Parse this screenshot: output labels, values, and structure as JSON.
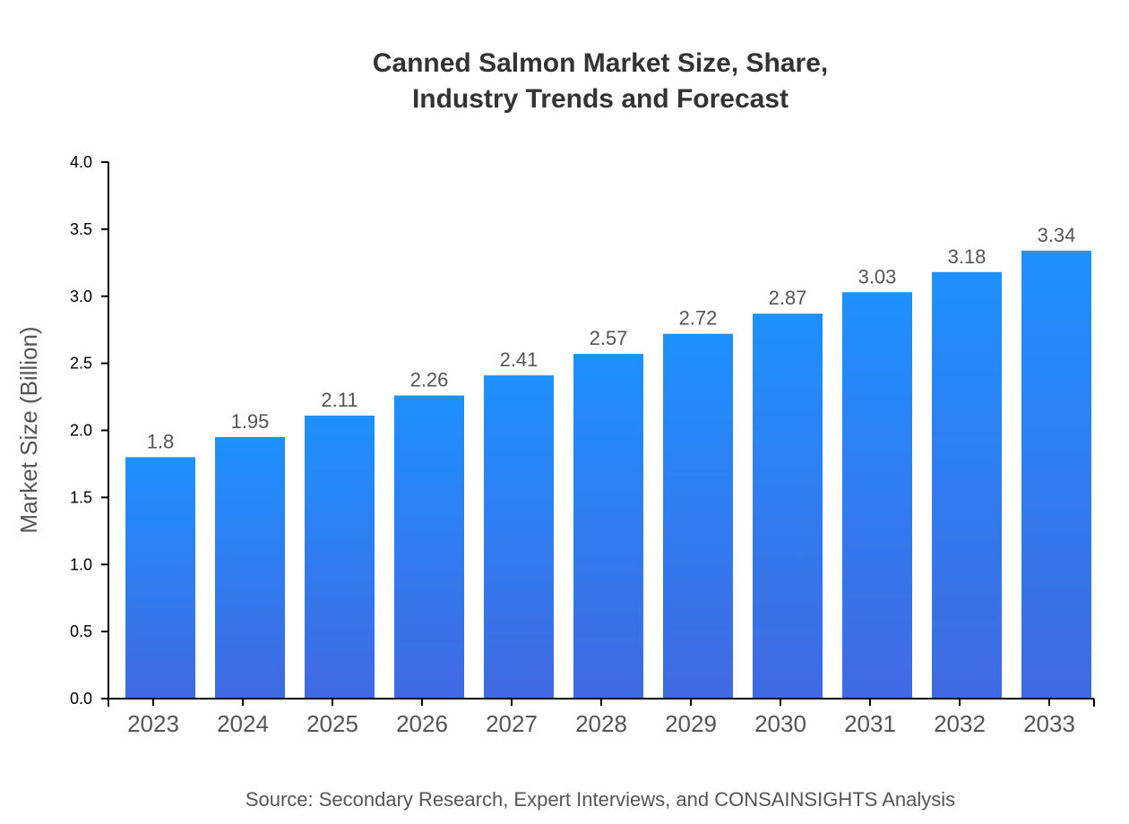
{
  "chart_data": {
    "type": "bar",
    "title": "Canned Salmon Market Size, Share,",
    "title_line2": "Industry Trends and Forecast",
    "xlabel": "",
    "ylabel": "Market Size (Billion)",
    "categories": [
      "2023",
      "2024",
      "2025",
      "2026",
      "2027",
      "2028",
      "2029",
      "2030",
      "2031",
      "2032",
      "2033"
    ],
    "values": [
      1.8,
      1.95,
      2.11,
      2.26,
      2.41,
      2.57,
      2.72,
      2.87,
      3.03,
      3.18,
      3.34
    ],
    "ylim": [
      0,
      4.0
    ],
    "yticks": [
      "0.0",
      "0.5",
      "1.0",
      "1.5",
      "2.0",
      "2.5",
      "3.0",
      "3.5",
      "4.0"
    ],
    "grid": false,
    "colors": {
      "bar_top": "#1e90ff",
      "bar_bottom": "#4169e1"
    },
    "source": "Source: Secondary Research, Expert Interviews, and CONSAINSIGHTS Analysis"
  }
}
